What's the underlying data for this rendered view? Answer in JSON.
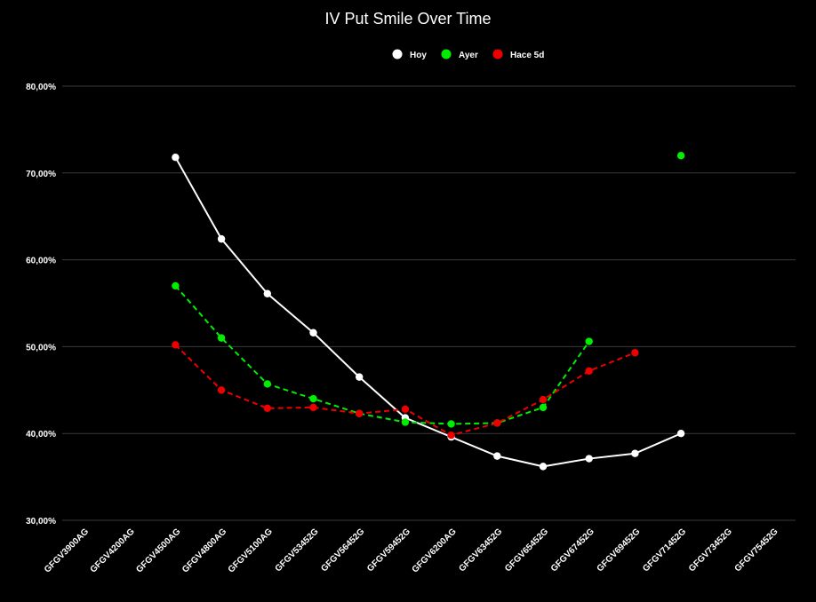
{
  "chart_data": {
    "type": "line",
    "title": "IV Put Smile Over Time",
    "xlabel": "",
    "ylabel": "",
    "ylim": [
      30,
      80
    ],
    "yticks": [
      "30,00%",
      "40,00%",
      "50,00%",
      "60,00%",
      "70,00%",
      "80,00%"
    ],
    "yticks_values": [
      30,
      40,
      50,
      60,
      70,
      80
    ],
    "grid": true,
    "legend_position": "top-center",
    "categories": [
      "GFGV3900AG",
      "GFGV4200AG",
      "GFGV4500AG",
      "GFGV4800AG",
      "GFGV5100AG",
      "GFGV53452G",
      "GFGV56452G",
      "GFGV59452G",
      "GFGV6200AG",
      "GFGV63452G",
      "GFGV65452G",
      "GFGV67452G",
      "GFGV69452G",
      "GFGV71452G",
      "GFGV73452G",
      "GFGV75452G"
    ],
    "series": [
      {
        "name": "Hoy",
        "color": "#ffffff",
        "style": "solid",
        "values": [
          null,
          null,
          71.8,
          62.4,
          56.1,
          51.6,
          46.5,
          41.8,
          39.6,
          37.4,
          36.2,
          37.1,
          37.7,
          40.0,
          null,
          null
        ]
      },
      {
        "name": "Ayer",
        "color": "#00ee00",
        "style": "dashed",
        "values": [
          null,
          null,
          57.0,
          51.0,
          45.7,
          44.0,
          42.3,
          41.3,
          41.1,
          41.2,
          43.0,
          50.6,
          null,
          72.0,
          null,
          null
        ]
      },
      {
        "name": "Hace 5d",
        "color": "#ee0000",
        "style": "dashed",
        "values": [
          null,
          null,
          50.2,
          45.0,
          42.9,
          43.0,
          42.3,
          42.8,
          39.8,
          41.2,
          43.9,
          47.2,
          49.3,
          null,
          null,
          null
        ]
      }
    ]
  }
}
